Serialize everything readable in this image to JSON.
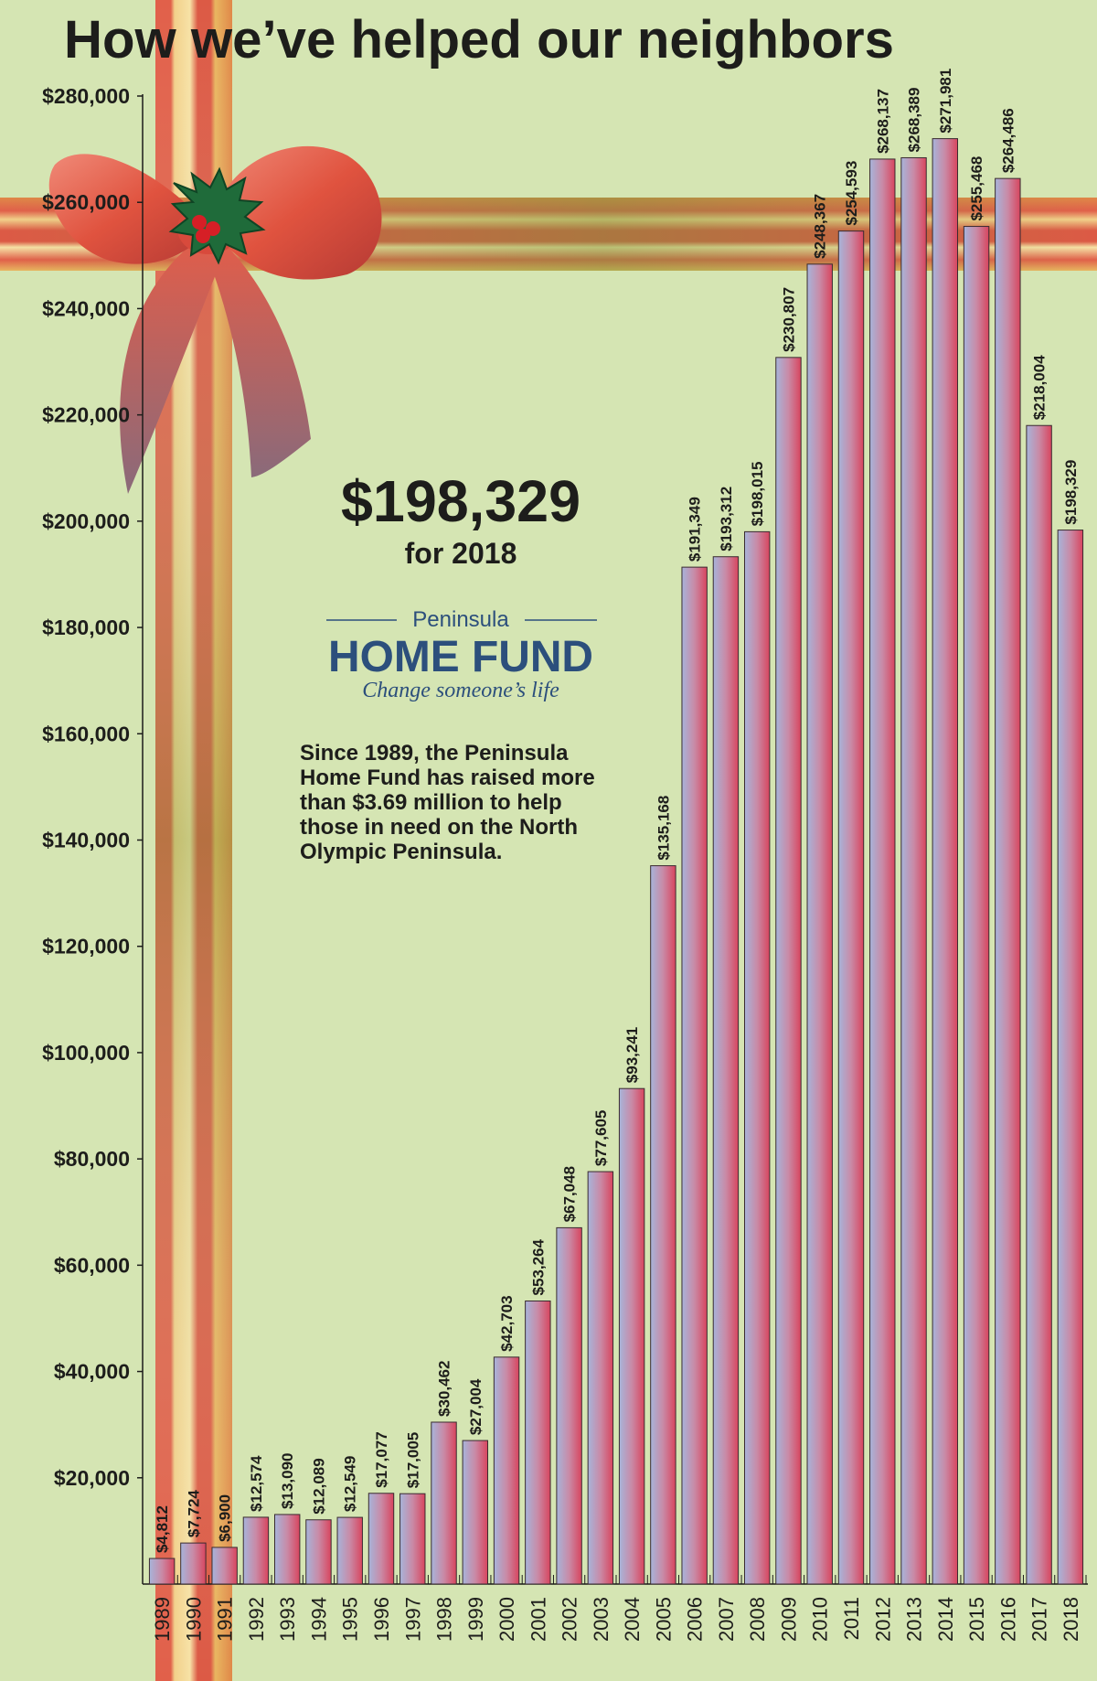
{
  "chart_data": {
    "type": "bar",
    "title": "How we’ve helped our neighbors",
    "categories": [
      "1989",
      "1990",
      "1991",
      "1992",
      "1993",
      "1994",
      "1995",
      "1996",
      "1997",
      "1998",
      "1999",
      "2000",
      "2001",
      "2002",
      "2003",
      "2004",
      "2005",
      "2006",
      "2007",
      "2008",
      "2009",
      "2010",
      "2011",
      "2012",
      "2013",
      "2014",
      "2015",
      "2016",
      "2017",
      "2018"
    ],
    "values": [
      4812,
      7724,
      6900,
      12574,
      13090,
      12089,
      12549,
      17077,
      17005,
      30462,
      27004,
      42703,
      53264,
      67048,
      77605,
      93241,
      135168,
      191349,
      193312,
      198015,
      230807,
      248367,
      254593,
      268137,
      268389,
      271981,
      255468,
      264486,
      218004,
      198329
    ],
    "value_labels": [
      "$4,812",
      "$7,724",
      "$6,900",
      "$12,574",
      "$13,090",
      "$12,089",
      "$12,549",
      "$17,077",
      "$17,005",
      "$30,462",
      "$27,004",
      "$42,703",
      "$53,264",
      "$67,048",
      "$77,605",
      "$93,241",
      "$135,168",
      "$191,349",
      "$193,312",
      "$198,015",
      "$230,807",
      "$248,367",
      "$254,593",
      "$268,137",
      "$268,389",
      "$271,981",
      "$255,468",
      "$264,486",
      "$218,004",
      "$198,329"
    ],
    "color": "#d8455e",
    "ylim": [
      0,
      280000
    ],
    "yticks": [
      {
        "value": 20000,
        "label": "$20,000"
      },
      {
        "value": 40000,
        "label": "$40,000"
      },
      {
        "value": 60000,
        "label": "$60,000"
      },
      {
        "value": 80000,
        "label": "$80,000"
      },
      {
        "value": 100000,
        "label": "$100,000"
      },
      {
        "value": 120000,
        "label": "$120,000"
      },
      {
        "value": 140000,
        "label": "$140,000"
      },
      {
        "value": 160000,
        "label": "$160,000"
      },
      {
        "value": 180000,
        "label": "$180,000"
      },
      {
        "value": 200000,
        "label": "$200,000"
      },
      {
        "value": 220000,
        "label": "$220,000"
      },
      {
        "value": 240000,
        "label": "$240,000"
      },
      {
        "value": 260000,
        "label": "$260,000"
      },
      {
        "value": 280000,
        "label": "$280,000"
      }
    ],
    "grid": false,
    "annotations": {
      "highlight": "$198,329",
      "highlight_caption": "for 2018",
      "logo_top": "Peninsula",
      "logo_name": "HOME FUND",
      "logo_tagline": "Change someone’s life",
      "note": [
        "Since 1989, the Peninsula",
        "Home Fund has raised more",
        "than $3.69 million to help",
        "those in need on the North",
        "Olympic Peninsula."
      ]
    }
  }
}
